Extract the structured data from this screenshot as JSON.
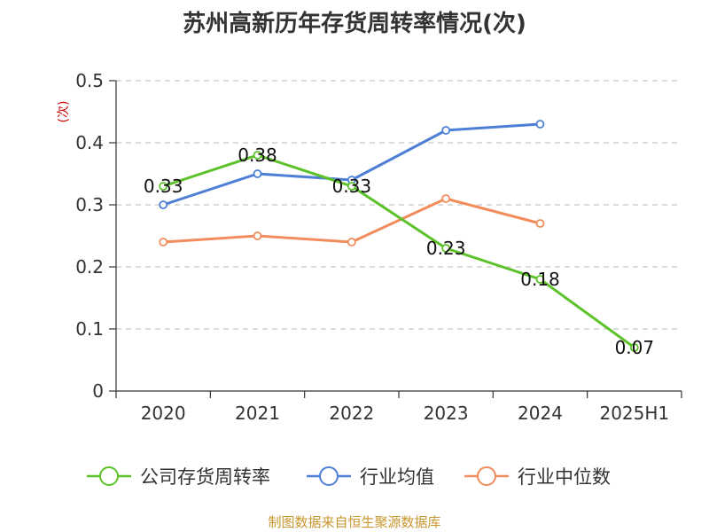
{
  "chart_data": {
    "type": "line",
    "title": "苏州高新历年存货周转率情况(次)",
    "ylabel": "(次)",
    "xlabel": "",
    "categories": [
      "2020",
      "2021",
      "2022",
      "2023",
      "2024",
      "2025H1"
    ],
    "ylim": [
      0,
      0.5
    ],
    "yticks": [
      "0",
      "0.1",
      "0.2",
      "0.3",
      "0.4",
      "0.5"
    ],
    "grid": true,
    "legend_position": "bottom",
    "series": [
      {
        "name": "公司存货周转率",
        "color": "#5dc22a",
        "values": [
          0.33,
          0.38,
          0.33,
          0.23,
          0.18,
          0.07
        ],
        "labels": [
          "0.33",
          "0.38",
          "0.33",
          "0.23",
          "0.18",
          "0.07"
        ]
      },
      {
        "name": "行业均值",
        "color": "#4e7fd7",
        "values": [
          0.3,
          0.35,
          0.34,
          0.42,
          0.43,
          null
        ]
      },
      {
        "name": "行业中位数",
        "color": "#f28c5c",
        "values": [
          0.24,
          0.25,
          0.24,
          0.31,
          0.27,
          null
        ]
      }
    ]
  },
  "source": "制图数据来自恒生聚源数据库"
}
